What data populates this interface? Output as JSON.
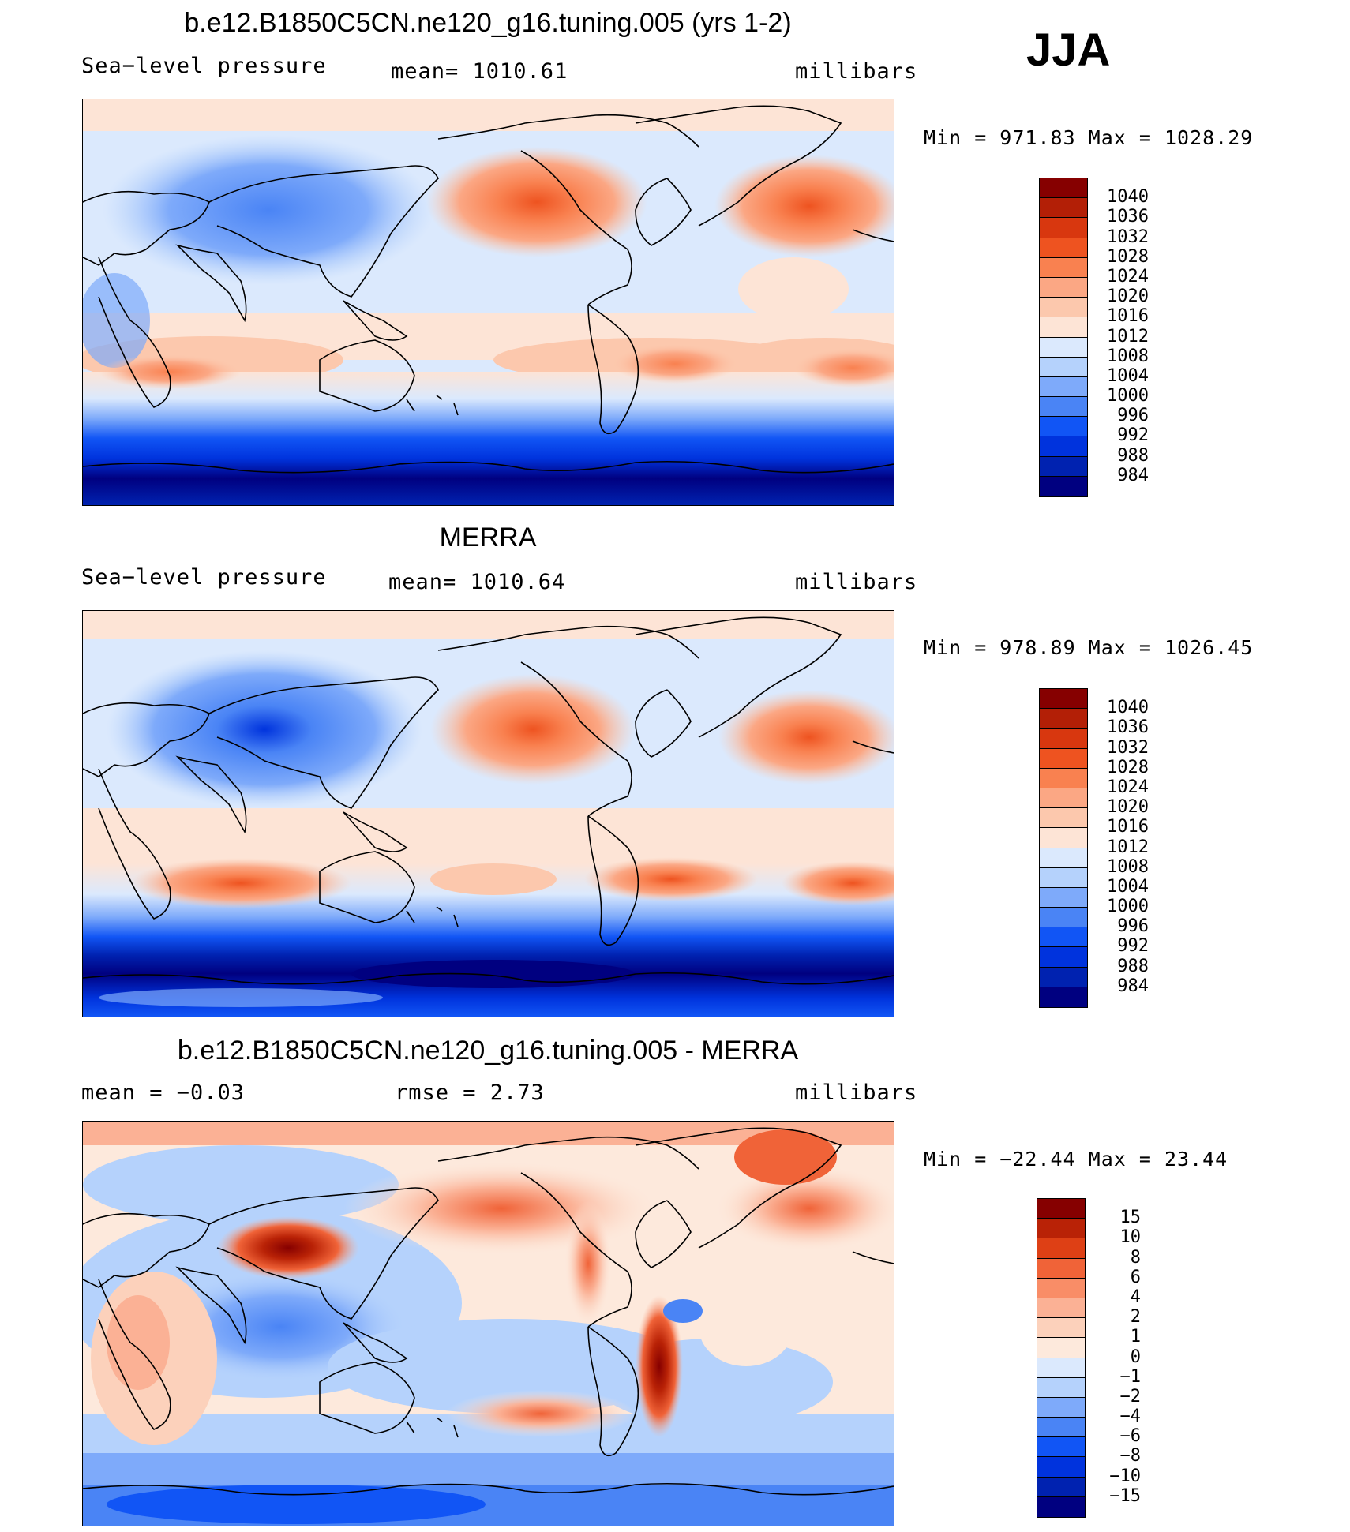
{
  "season": "JJA",
  "colors": {
    "slp": [
      "#000080",
      "#0022b0",
      "#0033dd",
      "#1155f5",
      "#4a84f5",
      "#7eaafa",
      "#b5d2fc",
      "#dbe9fd",
      "#fde4d6",
      "#fcc8ad",
      "#fba784",
      "#f98150",
      "#ee5320",
      "#d8370f",
      "#b31f06",
      "#860000"
    ],
    "diff": [
      "#000080",
      "#0022b0",
      "#0033dd",
      "#1155f5",
      "#4a84f5",
      "#7eaafa",
      "#b5d2fc",
      "#dbe9fd",
      "#fde9dc",
      "#fcd1bb",
      "#fbb195",
      "#f98d67",
      "#f06338",
      "#de4015",
      "#b92206",
      "#860000"
    ]
  },
  "panels": [
    {
      "title": "b.e12.B1850C5CN.ne120_g16.tuning.005 (yrs 1-2)",
      "left_label": "Sea−level pressure",
      "center_label": "mean=  1010.61",
      "right_label": "millibars",
      "minmax": "Min  =  971.83  Max  =  1028.29",
      "colorbar": {
        "type": "slp",
        "labels": [
          "1040",
          "1036",
          "1032",
          "1028",
          "1024",
          "1020",
          "1016",
          "1012",
          "1008",
          "1004",
          "1000",
          "996",
          "992",
          "988",
          "984"
        ]
      }
    },
    {
      "title": "MERRA",
      "left_label": "Sea−level pressure",
      "center_label": "mean=  1010.64",
      "right_label": "millibars",
      "minmax": "Min  =  978.89  Max  =  1026.45",
      "colorbar": {
        "type": "slp",
        "labels": [
          "1040",
          "1036",
          "1032",
          "1028",
          "1024",
          "1020",
          "1016",
          "1012",
          "1008",
          "1004",
          "1000",
          "996",
          "992",
          "988",
          "984"
        ]
      }
    },
    {
      "title": "b.e12.B1850C5CN.ne120_g16.tuning.005 - MERRA",
      "left_label": "mean  =    −0.03",
      "center_label": "rmse  =     2.73",
      "right_label": "millibars",
      "minmax": "Min  =  −22.44  Max  =    23.44",
      "colorbar": {
        "type": "diff",
        "labels": [
          "15",
          "10",
          "8",
          "6",
          "4",
          "2",
          "1",
          "0",
          "−1",
          "−2",
          "−4",
          "−6",
          "−8",
          "−10",
          "−15"
        ]
      }
    }
  ]
}
